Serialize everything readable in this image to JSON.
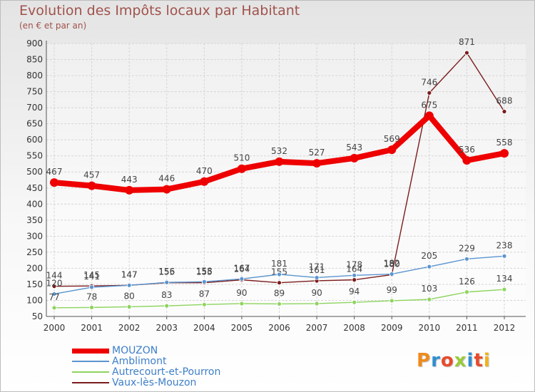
{
  "chart_data": {
    "type": "line",
    "title": "Evolution des Impôts locaux par Habitant",
    "subtitle": "(en € et par an)",
    "xlabel": "",
    "ylabel": "",
    "categories": [
      "2000",
      "2001",
      "2002",
      "2003",
      "2004",
      "2005",
      "2006",
      "2007",
      "2008",
      "2009",
      "2010",
      "2011",
      "2012"
    ],
    "y_ticks": [
      50,
      100,
      150,
      200,
      250,
      300,
      350,
      400,
      450,
      500,
      550,
      600,
      650,
      700,
      750,
      800,
      850,
      900
    ],
    "ylim": [
      50,
      900
    ],
    "grid": true,
    "legend_position": "bottom-left",
    "series": [
      {
        "name": "Vaux-lès-Mouzon",
        "color": "#7b1c1c",
        "values": [
          144,
          145,
          147,
          155,
          155,
          164,
          155,
          161,
          164,
          180,
          746,
          871,
          688
        ]
      },
      {
        "name": "Amblimont",
        "color": "#5b95cf",
        "values": [
          120,
          141,
          147,
          156,
          158,
          167,
          181,
          171,
          178,
          182,
          205,
          229,
          238
        ]
      },
      {
        "name": "Autrecourt-et-Pourron",
        "color": "#8ed45e",
        "values": [
          77,
          78,
          80,
          83,
          87,
          90,
          89,
          90,
          94,
          99,
          103,
          126,
          134
        ]
      },
      {
        "name": "MOUZON",
        "color": "#ee0000",
        "values": [
          467,
          457,
          443,
          446,
          470,
          510,
          532,
          527,
          543,
          569,
          675,
          536,
          558
        ]
      }
    ]
  },
  "legend": {
    "items": [
      {
        "label": "MOUZON",
        "color": "#ee0000"
      },
      {
        "label": "Amblimont",
        "color": "#5b95cf"
      },
      {
        "label": "Autrecourt-et-Pourron",
        "color": "#8ed45e"
      },
      {
        "label": "Vaux-lès-Mouzon",
        "color": "#7b1c1c"
      }
    ]
  },
  "logo": {
    "text": "Proxiti",
    "colors": [
      "#f08a1c",
      "#2f8fd0",
      "#e84b2c",
      "#9acb3c",
      "#2f8fd0",
      "#e84b2c",
      "#f0b21c"
    ]
  }
}
